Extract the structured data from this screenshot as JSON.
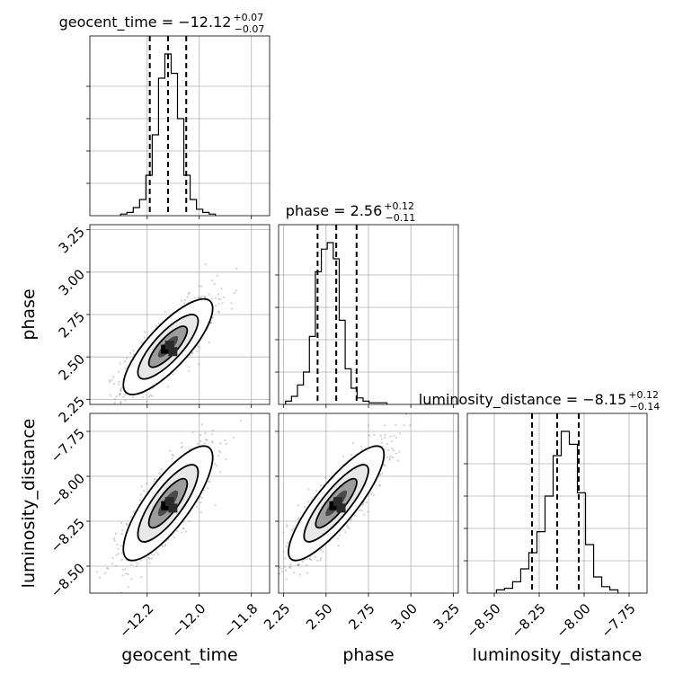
{
  "chart_data": {
    "type": "corner",
    "parameters": [
      {
        "name": "geocent_time",
        "axis_label": "geocent_time",
        "title_main": "geocent_time = −12.12",
        "title_sup": "+0.07",
        "title_sub": "−0.07",
        "median": -12.12,
        "lower": -12.19,
        "upper": -12.05,
        "range": [
          -12.42,
          -11.73
        ],
        "ticks": [
          -12.2,
          -12.0,
          -11.8
        ],
        "tick_labels": [
          "−12.2",
          "−12.0",
          "−11.8"
        ],
        "hist": [
          1,
          2,
          5,
          10,
          25,
          50,
          85,
          100,
          88,
          60,
          25,
          10,
          4,
          2,
          1
        ]
      },
      {
        "name": "phase",
        "axis_label": "phase",
        "title_main": "phase = 2.56",
        "title_sup": "+0.12",
        "title_sub": "−0.11",
        "median": 2.56,
        "lower": 2.45,
        "upper": 2.68,
        "range": [
          2.22,
          3.28
        ],
        "ticks": [
          2.25,
          2.5,
          2.75,
          3.0,
          3.25
        ],
        "tick_labels": [
          "2.25",
          "2.50",
          "2.75",
          "3.00",
          "3.25"
        ],
        "hist": [
          2,
          5,
          12,
          20,
          42,
          82,
          96,
          100,
          90,
          52,
          22,
          10,
          4,
          2,
          1,
          1,
          1
        ]
      },
      {
        "name": "luminosity_distance",
        "axis_label": "luminosity_distance",
        "title_main": "luminosity_distance = −8.15",
        "title_sup": "+0.12",
        "title_sub": "−0.14",
        "median": -8.15,
        "lower": -8.29,
        "upper": -8.03,
        "range": [
          -8.65,
          -7.65
        ],
        "ticks": [
          -8.5,
          -8.25,
          -8.0,
          -7.75
        ],
        "tick_labels": [
          "−8.50",
          "−8.25",
          "−8.00",
          "−7.75"
        ],
        "hist": [
          2,
          3,
          7,
          15,
          25,
          38,
          60,
          85,
          100,
          92,
          62,
          30,
          10,
          4,
          2
        ]
      }
    ],
    "pairs": [
      {
        "x": "geocent_time",
        "y": "phase",
        "correlation": 0.8
      },
      {
        "x": "geocent_time",
        "y": "luminosity_distance",
        "correlation": 0.8
      },
      {
        "x": "phase",
        "y": "luminosity_distance",
        "correlation": 0.85
      }
    ],
    "quantiles": [
      0.16,
      0.5,
      0.84
    ],
    "grid": true
  }
}
